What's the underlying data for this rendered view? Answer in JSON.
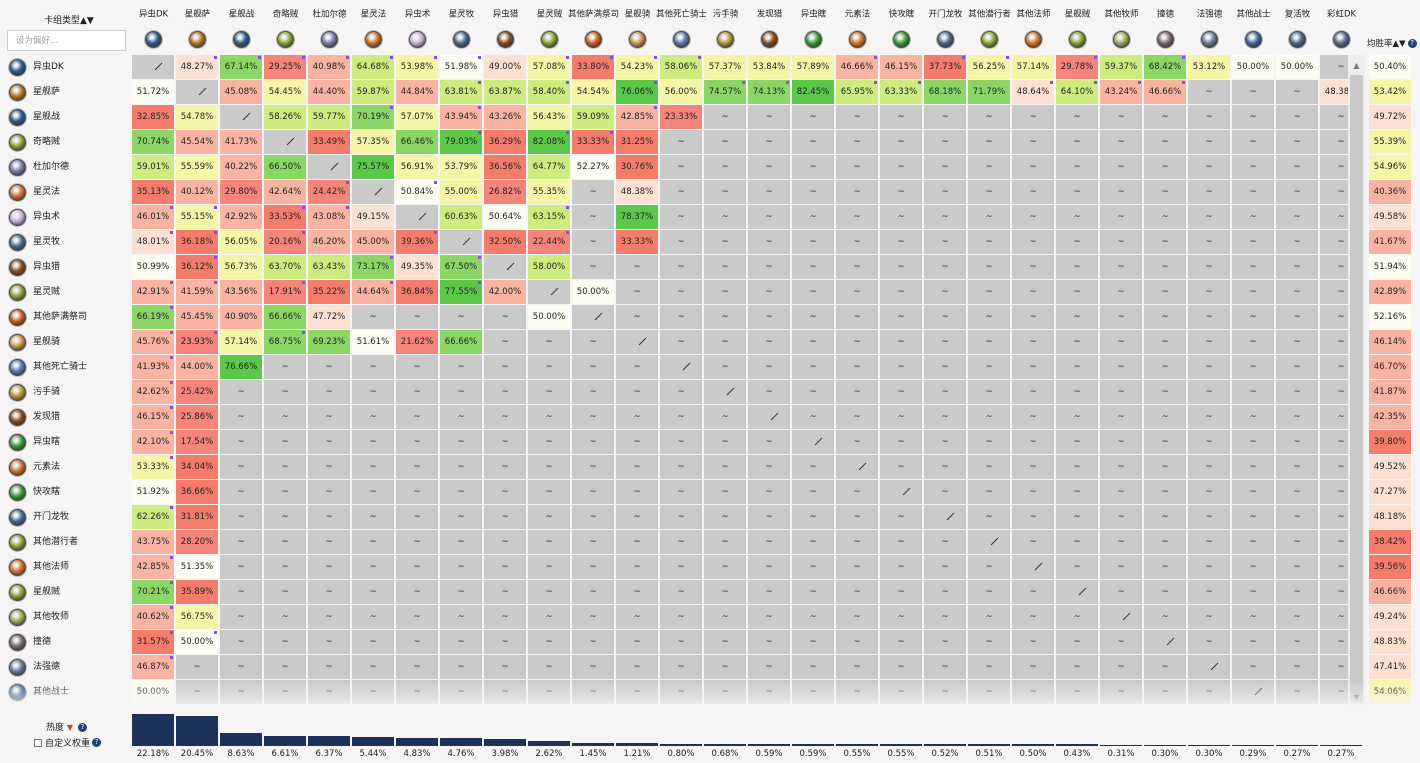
{
  "colors": {
    "win_scale": [
      [
        17,
        "#f5847a"
      ],
      [
        30,
        "#f47c6d"
      ],
      [
        40,
        "#f9b3a2"
      ],
      [
        47,
        "#fce0d2"
      ],
      [
        50,
        "#fcfcf2"
      ],
      [
        53,
        "#f5f5a8"
      ],
      [
        58,
        "#cdec7f"
      ],
      [
        66,
        "#8bd665"
      ],
      [
        75,
        "#5cc84a"
      ],
      [
        85,
        "#47b43d"
      ]
    ],
    "missing_cell": "#cacaca",
    "bar": "#1b3358",
    "help_icon": "#1f3f7a",
    "sample_marker": "#8a4fd6"
  },
  "header": {
    "title": "卡组类型",
    "sort_glyph": "▲▼",
    "search_placeholder": "设为偏好..."
  },
  "columns": [
    {
      "label": "异虫DK",
      "icon": "dk-icon",
      "color": "#2f5a8c"
    },
    {
      "label": "星舰萨",
      "icon": "shaman-icon",
      "color": "#b5791e"
    },
    {
      "label": "星舰战",
      "icon": "warrior-icon",
      "color": "#2f5a8c"
    },
    {
      "label": "奇略贼",
      "icon": "rogue-icon",
      "color": "#8aa52e"
    },
    {
      "label": "杜加尔德",
      "icon": "paladin-icon",
      "color": "#7a7aaa"
    },
    {
      "label": "星灵法",
      "icon": "mage-icon",
      "color": "#d2702a"
    },
    {
      "label": "异虫术",
      "icon": "warlock-icon",
      "color": "#c9b4d8"
    },
    {
      "label": "星灵牧",
      "icon": "priest-icon",
      "color": "#4a6a8a"
    },
    {
      "label": "异虫猎",
      "icon": "hunter-icon",
      "color": "#8a4a1e"
    },
    {
      "label": "星灵贼",
      "icon": "rogue-icon",
      "color": "#8aa52e"
    },
    {
      "label": "其他萨满祭司",
      "icon": "shaman-icon",
      "color": "#c9601e"
    },
    {
      "label": "星舰骑",
      "icon": "paladin-icon",
      "color": "#c99a4a"
    },
    {
      "label": "其他死亡骑士",
      "icon": "dk-icon",
      "color": "#5a7aaa"
    },
    {
      "label": "污手骑",
      "icon": "paladin-icon",
      "color": "#b59a3a"
    },
    {
      "label": "发现猎",
      "icon": "hunter-icon",
      "color": "#8a4a1e"
    },
    {
      "label": "异虫瞎",
      "icon": "demonhunter-icon",
      "color": "#3a9a3a"
    },
    {
      "label": "元素法",
      "icon": "mage-icon",
      "color": "#d2702a"
    },
    {
      "label": "快攻瞎",
      "icon": "demonhunter-icon",
      "color": "#3a9a3a"
    },
    {
      "label": "开门龙牧",
      "icon": "priest-icon",
      "color": "#4a6a8a"
    },
    {
      "label": "其他潜行者",
      "icon": "rogue-icon",
      "color": "#8aa52e"
    },
    {
      "label": "其他法师",
      "icon": "mage-icon",
      "color": "#d2702a"
    },
    {
      "label": "星舰贼",
      "icon": "rogue-icon",
      "color": "#8aa52e"
    },
    {
      "label": "其他牧师",
      "icon": "priest-icon",
      "color": "#9aaa5a"
    },
    {
      "label": "撞德",
      "icon": "druid-icon",
      "color": "#7a6a6a"
    },
    {
      "label": "法强德",
      "icon": "druid-icon",
      "color": "#6a7a9a"
    },
    {
      "label": "其他战士",
      "icon": "warrior-icon",
      "color": "#3a6a9a"
    },
    {
      "label": "复活牧",
      "icon": "priest-icon",
      "color": "#4a6a8a"
    },
    {
      "label": "彩虹DK",
      "icon": "dk-icon",
      "color": "#5a6a8a"
    }
  ],
  "rows": [
    {
      "label": "异虫DK",
      "icon": "dk-icon",
      "color": "#2f5a8c"
    },
    {
      "label": "星舰萨",
      "icon": "shaman-icon",
      "color": "#b5791e"
    },
    {
      "label": "星舰战",
      "icon": "warrior-icon",
      "color": "#2f5a8c"
    },
    {
      "label": "奇略贼",
      "icon": "rogue-icon",
      "color": "#8aa52e"
    },
    {
      "label": "杜加尔德",
      "icon": "paladin-icon",
      "color": "#7a7aaa"
    },
    {
      "label": "星灵法",
      "icon": "mage-icon",
      "color": "#d2702a"
    },
    {
      "label": "异虫术",
      "icon": "warlock-icon",
      "color": "#c9b4d8"
    },
    {
      "label": "星灵牧",
      "icon": "priest-icon",
      "color": "#4a6a8a"
    },
    {
      "label": "异虫猎",
      "icon": "hunter-icon",
      "color": "#8a4a1e"
    },
    {
      "label": "星灵贼",
      "icon": "rogue-icon",
      "color": "#8aa52e"
    },
    {
      "label": "其他萨满祭司",
      "icon": "shaman-icon",
      "color": "#c9601e"
    },
    {
      "label": "星舰骑",
      "icon": "paladin-icon",
      "color": "#c99a4a"
    },
    {
      "label": "其他死亡骑士",
      "icon": "dk-icon",
      "color": "#5a7aaa"
    },
    {
      "label": "污手骑",
      "icon": "paladin-icon",
      "color": "#b59a3a"
    },
    {
      "label": "发现猎",
      "icon": "hunter-icon",
      "color": "#8a4a1e"
    },
    {
      "label": "异虫瞎",
      "icon": "demonhunter-icon",
      "color": "#3a9a3a"
    },
    {
      "label": "元素法",
      "icon": "mage-icon",
      "color": "#d2702a"
    },
    {
      "label": "快攻瞎",
      "icon": "demonhunter-icon",
      "color": "#3a9a3a"
    },
    {
      "label": "开门龙牧",
      "icon": "priest-icon",
      "color": "#4a6a8a"
    },
    {
      "label": "其他潜行者",
      "icon": "rogue-icon",
      "color": "#8aa52e"
    },
    {
      "label": "其他法师",
      "icon": "mage-icon",
      "color": "#d2702a"
    },
    {
      "label": "星舰贼",
      "icon": "rogue-icon",
      "color": "#8aa52e"
    },
    {
      "label": "其他牧师",
      "icon": "priest-icon",
      "color": "#9aaa5a"
    },
    {
      "label": "撞德",
      "icon": "druid-icon",
      "color": "#7a6a6a"
    },
    {
      "label": "法强德",
      "icon": "druid-icon",
      "color": "#6a7a9a"
    },
    {
      "label": "其他战士",
      "icon": "warrior-icon",
      "color": "#3a6a9a"
    }
  ],
  "matrix": [
    [
      "/",
      "48.27%",
      "67.14%",
      "29.25%",
      "40.98%",
      "64.68%",
      "53.98%",
      "51.98%",
      "49.00%",
      "57.08%",
      "33.80%",
      "54.23%",
      "58.06%",
      "57.37%",
      "53.84%",
      "57.89%",
      "46.66%",
      "46.15%",
      "37.73%",
      "56.25%",
      "57.14%",
      "29.78%",
      "59.37%",
      "68.42%",
      "53.12%",
      "50.00%",
      "50.00%",
      "~"
    ],
    [
      "51.72%",
      "/",
      "45.08%",
      "54.45%",
      "44.40%",
      "59.87%",
      "44.84%",
      "63.81%",
      "63.87%",
      "58.40%",
      "54.54%",
      "76.06%",
      "56.00%",
      "74.57%",
      "74.13%",
      "82.45%",
      "65.95%",
      "63.33%",
      "68.18%",
      "71.79%",
      "48.64%",
      "64.10%",
      "43.24%",
      "46.66%",
      "~",
      "~",
      "~",
      "48.38%"
    ],
    [
      "32.85%",
      "54.78%",
      "/",
      "58.26%",
      "59.77%",
      "70.19%",
      "57.07%",
      "43.94%",
      "43.26%",
      "56.43%",
      "59.09%",
      "42.85%",
      "23.33%",
      "~",
      "~",
      "~",
      "~",
      "~",
      "~",
      "~",
      "~",
      "~",
      "~",
      "~",
      "~",
      "~",
      "~",
      "~"
    ],
    [
      "70.74%",
      "45.54%",
      "41.73%",
      "/",
      "33.49%",
      "57.35%",
      "66.46%",
      "79.03%",
      "36.29%",
      "82.08%",
      "33.33%",
      "31.25%",
      "~",
      "~",
      "~",
      "~",
      "~",
      "~",
      "~",
      "~",
      "~",
      "~",
      "~",
      "~",
      "~",
      "~",
      "~",
      "~"
    ],
    [
      "59.01%",
      "55.59%",
      "40.22%",
      "66.50%",
      "/",
      "75.57%",
      "56.91%",
      "53.79%",
      "36.56%",
      "64.77%",
      "52.27%",
      "30.76%",
      "~",
      "~",
      "~",
      "~",
      "~",
      "~",
      "~",
      "~",
      "~",
      "~",
      "~",
      "~",
      "~",
      "~",
      "~",
      "~"
    ],
    [
      "35.13%",
      "40.12%",
      "29.80%",
      "42.64%",
      "24.42%",
      "/",
      "50.84%",
      "55.00%",
      "26.82%",
      "55.35%",
      "~",
      "48.38%",
      "~",
      "~",
      "~",
      "~",
      "~",
      "~",
      "~",
      "~",
      "~",
      "~",
      "~",
      "~",
      "~",
      "~",
      "~",
      "~"
    ],
    [
      "46.01%",
      "55.15%",
      "42.92%",
      "33.53%",
      "43.08%",
      "49.15%",
      "/",
      "60.63%",
      "50.64%",
      "63.15%",
      "~",
      "78.37%",
      "~",
      "~",
      "~",
      "~",
      "~",
      "~",
      "~",
      "~",
      "~",
      "~",
      "~",
      "~",
      "~",
      "~",
      "~",
      "~"
    ],
    [
      "48.01%",
      "36.18%",
      "56.05%",
      "20.16%",
      "46.20%",
      "45.00%",
      "39.36%",
      "/",
      "32.50%",
      "22.44%",
      "~",
      "33.33%",
      "~",
      "~",
      "~",
      "~",
      "~",
      "~",
      "~",
      "~",
      "~",
      "~",
      "~",
      "~",
      "~",
      "~",
      "~",
      "~"
    ],
    [
      "50.99%",
      "36.12%",
      "56.73%",
      "63.70%",
      "63.43%",
      "73.17%",
      "49.35%",
      "67.50%",
      "/",
      "58.00%",
      "~",
      "~",
      "~",
      "~",
      "~",
      "~",
      "~",
      "~",
      "~",
      "~",
      "~",
      "~",
      "~",
      "~",
      "~",
      "~",
      "~",
      "~"
    ],
    [
      "42.91%",
      "41.59%",
      "43.56%",
      "17.91%",
      "35.22%",
      "44.64%",
      "36.84%",
      "77.55%",
      "42.00%",
      "/",
      "50.00%",
      "~",
      "~",
      "~",
      "~",
      "~",
      "~",
      "~",
      "~",
      "~",
      "~",
      "~",
      "~",
      "~",
      "~",
      "~",
      "~",
      "~"
    ],
    [
      "66.19%",
      "45.45%",
      "40.90%",
      "66.66%",
      "47.72%",
      "~",
      "~",
      "~",
      "~",
      "50.00%",
      "/",
      "~",
      "~",
      "~",
      "~",
      "~",
      "~",
      "~",
      "~",
      "~",
      "~",
      "~",
      "~",
      "~",
      "~",
      "~",
      "~",
      "~"
    ],
    [
      "45.76%",
      "23.93%",
      "57.14%",
      "68.75%",
      "69.23%",
      "51.61%",
      "21.62%",
      "66.66%",
      "~",
      "~",
      "~",
      "/",
      "~",
      "~",
      "~",
      "~",
      "~",
      "~",
      "~",
      "~",
      "~",
      "~",
      "~",
      "~",
      "~",
      "~",
      "~",
      "~"
    ],
    [
      "41.93%",
      "44.00%",
      "76.66%",
      "~",
      "~",
      "~",
      "~",
      "~",
      "~",
      "~",
      "~",
      "~",
      "/",
      "~",
      "~",
      "~",
      "~",
      "~",
      "~",
      "~",
      "~",
      "~",
      "~",
      "~",
      "~",
      "~",
      "~",
      "~"
    ],
    [
      "42.62%",
      "25.42%",
      "~",
      "~",
      "~",
      "~",
      "~",
      "~",
      "~",
      "~",
      "~",
      "~",
      "~",
      "/",
      "~",
      "~",
      "~",
      "~",
      "~",
      "~",
      "~",
      "~",
      "~",
      "~",
      "~",
      "~",
      "~",
      "~"
    ],
    [
      "46.15%",
      "25.86%",
      "~",
      "~",
      "~",
      "~",
      "~",
      "~",
      "~",
      "~",
      "~",
      "~",
      "~",
      "~",
      "/",
      "~",
      "~",
      "~",
      "~",
      "~",
      "~",
      "~",
      "~",
      "~",
      "~",
      "~",
      "~",
      "~"
    ],
    [
      "42.10%",
      "17.54%",
      "~",
      "~",
      "~",
      "~",
      "~",
      "~",
      "~",
      "~",
      "~",
      "~",
      "~",
      "~",
      "~",
      "/",
      "~",
      "~",
      "~",
      "~",
      "~",
      "~",
      "~",
      "~",
      "~",
      "~",
      "~",
      "~"
    ],
    [
      "53.33%",
      "34.04%",
      "~",
      "~",
      "~",
      "~",
      "~",
      "~",
      "~",
      "~",
      "~",
      "~",
      "~",
      "~",
      "~",
      "~",
      "/",
      "~",
      "~",
      "~",
      "~",
      "~",
      "~",
      "~",
      "~",
      "~",
      "~",
      "~"
    ],
    [
      "51.92%",
      "36.66%",
      "~",
      "~",
      "~",
      "~",
      "~",
      "~",
      "~",
      "~",
      "~",
      "~",
      "~",
      "~",
      "~",
      "~",
      "~",
      "/",
      "~",
      "~",
      "~",
      "~",
      "~",
      "~",
      "~",
      "~",
      "~",
      "~"
    ],
    [
      "62.26%",
      "31.81%",
      "~",
      "~",
      "~",
      "~",
      "~",
      "~",
      "~",
      "~",
      "~",
      "~",
      "~",
      "~",
      "~",
      "~",
      "~",
      "~",
      "/",
      "~",
      "~",
      "~",
      "~",
      "~",
      "~",
      "~",
      "~",
      "~"
    ],
    [
      "43.75%",
      "28.20%",
      "~",
      "~",
      "~",
      "~",
      "~",
      "~",
      "~",
      "~",
      "~",
      "~",
      "~",
      "~",
      "~",
      "~",
      "~",
      "~",
      "~",
      "/",
      "~",
      "~",
      "~",
      "~",
      "~",
      "~",
      "~",
      "~"
    ],
    [
      "42.85%",
      "51.35%",
      "~",
      "~",
      "~",
      "~",
      "~",
      "~",
      "~",
      "~",
      "~",
      "~",
      "~",
      "~",
      "~",
      "~",
      "~",
      "~",
      "~",
      "~",
      "/",
      "~",
      "~",
      "~",
      "~",
      "~",
      "~",
      "~"
    ],
    [
      "70.21%",
      "35.89%",
      "~",
      "~",
      "~",
      "~",
      "~",
      "~",
      "~",
      "~",
      "~",
      "~",
      "~",
      "~",
      "~",
      "~",
      "~",
      "~",
      "~",
      "~",
      "~",
      "/",
      "~",
      "~",
      "~",
      "~",
      "~",
      "~"
    ],
    [
      "40.62%",
      "56.75%",
      "~",
      "~",
      "~",
      "~",
      "~",
      "~",
      "~",
      "~",
      "~",
      "~",
      "~",
      "~",
      "~",
      "~",
      "~",
      "~",
      "~",
      "~",
      "~",
      "~",
      "/",
      "~",
      "~",
      "~",
      "~",
      "~"
    ],
    [
      "31.57%",
      "50.00%",
      "~",
      "~",
      "~",
      "~",
      "~",
      "~",
      "~",
      "~",
      "~",
      "~",
      "~",
      "~",
      "~",
      "~",
      "~",
      "~",
      "~",
      "~",
      "~",
      "~",
      "~",
      "/",
      "~",
      "~",
      "~",
      "~"
    ],
    [
      "46.87%",
      "~",
      "~",
      "~",
      "~",
      "~",
      "~",
      "~",
      "~",
      "~",
      "~",
      "~",
      "~",
      "~",
      "~",
      "~",
      "~",
      "~",
      "~",
      "~",
      "~",
      "~",
      "~",
      "~",
      "/",
      "~",
      "~",
      "~"
    ],
    [
      "50.00%",
      "~",
      "~",
      "~",
      "~",
      "~",
      "~",
      "~",
      "~",
      "~",
      "~",
      "~",
      "~",
      "~",
      "~",
      "~",
      "~",
      "~",
      "~",
      "~",
      "~",
      "~",
      "~",
      "~",
      "~",
      "/",
      "~",
      "~"
    ]
  ],
  "low_sample_marked": [
    [
      0,
      1
    ],
    [
      0,
      2
    ],
    [
      0,
      3
    ],
    [
      0,
      4
    ],
    [
      0,
      5
    ],
    [
      0,
      6
    ],
    [
      0,
      7
    ],
    [
      0,
      9
    ],
    [
      0,
      10
    ],
    [
      0,
      11
    ],
    [
      0,
      12
    ],
    [
      0,
      16
    ],
    [
      0,
      18
    ],
    [
      0,
      19
    ],
    [
      0,
      21
    ],
    [
      0,
      23
    ],
    [
      1,
      7
    ],
    [
      1,
      9
    ],
    [
      1,
      11
    ],
    [
      1,
      13
    ],
    [
      1,
      14
    ],
    [
      1,
      16
    ],
    [
      1,
      17
    ],
    [
      1,
      20
    ],
    [
      1,
      21
    ],
    [
      1,
      22
    ],
    [
      1,
      23
    ],
    [
      2,
      5
    ],
    [
      2,
      7
    ],
    [
      2,
      11
    ],
    [
      3,
      7
    ],
    [
      3,
      9
    ],
    [
      3,
      10
    ],
    [
      5,
      4
    ],
    [
      5,
      6
    ],
    [
      6,
      0
    ],
    [
      6,
      1
    ],
    [
      6,
      3
    ],
    [
      6,
      4
    ],
    [
      6,
      9
    ],
    [
      7,
      0
    ],
    [
      7,
      1
    ],
    [
      7,
      3
    ],
    [
      7,
      6
    ],
    [
      7,
      9
    ],
    [
      8,
      1
    ],
    [
      8,
      5
    ],
    [
      8,
      7
    ],
    [
      9,
      0
    ],
    [
      9,
      1
    ],
    [
      9,
      3
    ],
    [
      9,
      5
    ],
    [
      9,
      7
    ],
    [
      10,
      0
    ],
    [
      11,
      0
    ],
    [
      11,
      1
    ],
    [
      11,
      3
    ],
    [
      12,
      0
    ],
    [
      13,
      0
    ],
    [
      14,
      0
    ],
    [
      15,
      0
    ],
    [
      16,
      0
    ],
    [
      18,
      0
    ],
    [
      20,
      0
    ],
    [
      21,
      0
    ],
    [
      22,
      0
    ],
    [
      23,
      0
    ],
    [
      23,
      1
    ],
    [
      24,
      0
    ]
  ],
  "win_rate": {
    "label": "均胜率",
    "sort_glyph": "▲▼",
    "help": "?",
    "values": [
      "50.40%",
      "53.42%",
      "49.72%",
      "55.39%",
      "54.96%",
      "40.36%",
      "49.58%",
      "41.67%",
      "51.94%",
      "42.89%",
      "52.16%",
      "46.14%",
      "46.70%",
      "41.87%",
      "42.35%",
      "39.80%",
      "49.52%",
      "47.27%",
      "48.18%",
      "38.42%",
      "39.56%",
      "46.66%",
      "49.24%",
      "48.83%",
      "47.41%",
      "54.06%"
    ]
  },
  "popularity": {
    "label": "热度",
    "sort_glyph": "▼",
    "help": "?",
    "custom_weight_label": "自定义权重",
    "custom_weight_checked": false,
    "values": [
      "22.18%",
      "20.45%",
      "8.63%",
      "6.61%",
      "6.37%",
      "5.44%",
      "4.83%",
      "4.76%",
      "3.98%",
      "2.62%",
      "1.45%",
      "1.21%",
      "0.80%",
      "0.68%",
      "0.59%",
      "0.59%",
      "0.55%",
      "0.55%",
      "0.52%",
      "0.51%",
      "0.50%",
      "0.43%",
      "0.31%",
      "0.30%",
      "0.30%",
      "0.29%",
      "0.27%",
      "0.27%"
    ]
  },
  "scrollbar": {
    "up": "▲",
    "down": "▼"
  }
}
